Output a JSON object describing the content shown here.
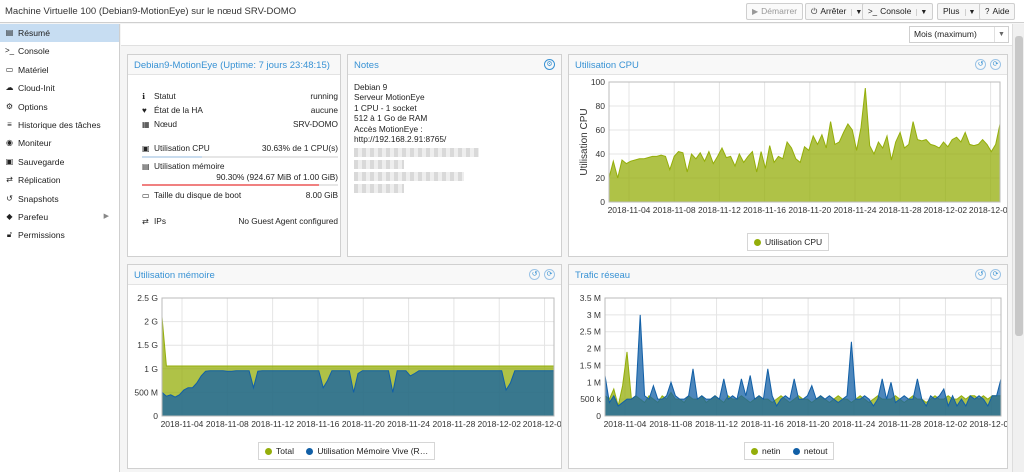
{
  "window": {
    "title": "Machine Virtuelle 100 (Debian9-MotionEye) sur le nœud SRV-DOMO"
  },
  "toolbar": {
    "start_label": "Démarrer",
    "stop_label": "Arrêter",
    "console_label": "Console",
    "more_label": "Plus",
    "help_label": "Aide"
  },
  "sidebar": {
    "items": [
      {
        "label": "Résumé",
        "icon": "book-icon"
      },
      {
        "label": "Console",
        "icon": "terminal-icon"
      },
      {
        "label": "Matériel",
        "icon": "monitor-icon"
      },
      {
        "label": "Cloud-Init",
        "icon": "cloud-icon"
      },
      {
        "label": "Options",
        "icon": "gear-icon"
      },
      {
        "label": "Historique des tâches",
        "icon": "list-icon"
      },
      {
        "label": "Moniteur",
        "icon": "eye-icon"
      },
      {
        "label": "Sauvegarde",
        "icon": "floppy-icon"
      },
      {
        "label": "Réplication",
        "icon": "retweet-icon"
      },
      {
        "label": "Snapshots",
        "icon": "history-icon"
      },
      {
        "label": "Parefeu",
        "icon": "shield-icon"
      },
      {
        "label": "Permissions",
        "icon": "unlock-icon"
      }
    ]
  },
  "timeframe": {
    "selected": "Mois (maximum)"
  },
  "status": {
    "title": "Debian9-MotionEye (Uptime: 7 jours 23:48:15)",
    "rows": {
      "statut": {
        "label": "Statut",
        "value": "running"
      },
      "ha": {
        "label": "État de la HA",
        "value": "aucune"
      },
      "node": {
        "label": "Nœud",
        "value": "SRV-DOMO"
      },
      "cpu": {
        "label": "Utilisation CPU",
        "value": "30.63% de 1 CPU(s)",
        "fraction": 0.3063
      },
      "mem": {
        "label": "Utilisation mémoire",
        "value": "90.30% (924.67 MiB of 1.00 GiB)",
        "fraction": 0.903
      },
      "disk": {
        "label": "Taille du disque de boot",
        "value": "8.00 GiB"
      },
      "ips": {
        "label": "IPs",
        "value": "No Guest Agent configured"
      }
    }
  },
  "notes": {
    "title": "Notes",
    "lines": [
      "Debian 9",
      "Serveur MotionEye",
      "1 CPU - 1 socket",
      "512 à 1 Go de RAM",
      "Accès MotionEye :",
      "http://192.168.2.91:8765/"
    ]
  },
  "colors": {
    "green": "#94ae0a",
    "blue": "#115fa6",
    "cpu_bar": "#c9dcee",
    "mem_bar": "#f08080"
  },
  "chart_data": [
    {
      "id": "cpu",
      "type": "area",
      "title": "Utilisation CPU",
      "ylabel": "Utilisation CPU",
      "ylim": [
        0,
        100
      ],
      "yticks": [
        "0",
        "20",
        "40",
        "60",
        "80",
        "100"
      ],
      "xticks": [
        "2018-11-04",
        "2018-11-08",
        "2018-11-12",
        "2018-11-16",
        "2018-11-20",
        "2018-11-24",
        "2018-11-28",
        "2018-12-02",
        "2018-12-06"
      ],
      "grid": true,
      "legend_position": "bottom",
      "series": [
        {
          "name": "Utilisation CPU",
          "values": [
            20,
            34,
            20,
            35,
            32,
            34,
            35,
            36,
            36,
            37,
            38,
            38,
            39,
            38,
            27,
            38,
            42,
            41,
            25,
            40,
            36,
            41,
            34,
            42,
            32,
            38,
            45,
            37,
            38,
            30,
            40,
            33,
            38,
            42,
            25,
            42,
            28,
            47,
            33,
            38,
            36,
            50,
            45,
            36,
            33,
            46,
            43,
            55,
            48,
            56,
            45,
            67,
            48,
            50,
            58,
            65,
            60,
            43,
            62,
            95,
            47,
            40,
            50,
            45,
            55,
            35,
            50,
            58,
            45,
            48,
            67,
            52,
            51,
            52,
            48,
            47,
            45,
            50,
            46,
            52,
            54,
            50,
            58,
            48,
            47,
            48,
            52,
            48,
            42,
            48,
            65
          ]
        }
      ]
    },
    {
      "id": "mem",
      "type": "area",
      "title": "Utilisation mémoire",
      "ylim": [
        0,
        2.5
      ],
      "yticks": [
        "0",
        "500 M",
        "1 G",
        "1.5 G",
        "2 G",
        "2.5 G"
      ],
      "xticks": [
        "2018-11-04",
        "2018-11-08",
        "2018-11-12",
        "2018-11-16",
        "2018-11-20",
        "2018-11-24",
        "2018-11-28",
        "2018-12-02",
        "2018-12-06"
      ],
      "grid": true,
      "legend_position": "bottom",
      "series": [
        {
          "name": "Total",
          "values": [
            2.1,
            1.06,
            1.06,
            1.06,
            1.06,
            1.06,
            1.06,
            1.06,
            1.06,
            1.06,
            1.06,
            1.06,
            1.06,
            1.06,
            1.06,
            1.06,
            1.06,
            1.06,
            1.06,
            1.06,
            1.06,
            1.06,
            1.06,
            1.06,
            1.06,
            1.06,
            1.06,
            1.06,
            1.06,
            1.06,
            1.06,
            1.06,
            1.06,
            1.06,
            1.06,
            1.06,
            1.06,
            1.06,
            1.06,
            1.06,
            1.06,
            1.06,
            1.06,
            1.06,
            1.06,
            1.06,
            1.06,
            1.06,
            1.06,
            1.06,
            1.06,
            1.06,
            1.06,
            1.06,
            1.06,
            1.06,
            1.06,
            1.06,
            1.06,
            1.06,
            1.06,
            1.06,
            1.06,
            1.06,
            1.06,
            1.06,
            1.06,
            1.06,
            1.06,
            1.06,
            1.06,
            1.06,
            1.06,
            1.06,
            1.06,
            1.06,
            1.06,
            1.06,
            1.06,
            1.06,
            1.06,
            1.06,
            1.06,
            1.06,
            1.06,
            1.06,
            1.06,
            1.06,
            1.06,
            1.06,
            1.06
          ]
        },
        {
          "name": "Utilisation Mémoire Vive (R…",
          "values": [
            0.5,
            0.42,
            0.45,
            0.4,
            0.45,
            0.55,
            0.6,
            0.6,
            0.7,
            0.85,
            0.95,
            0.96,
            0.96,
            0.96,
            0.96,
            0.95,
            0.95,
            0.96,
            0.96,
            0.96,
            0.96,
            0.6,
            0.95,
            0.96,
            0.96,
            0.96,
            0.96,
            0.96,
            0.96,
            0.96,
            0.96,
            0.96,
            0.96,
            0.96,
            0.96,
            0.96,
            0.96,
            0.6,
            0.75,
            0.96,
            0.96,
            0.96,
            0.96,
            0.96,
            0.5,
            0.9,
            0.96,
            0.96,
            0.96,
            0.96,
            0.96,
            0.96,
            0.96,
            0.5,
            0.96,
            0.96,
            0.96,
            0.85,
            0.9,
            0.96,
            0.96,
            0.96,
            0.96,
            0.96,
            0.96,
            0.96,
            0.96,
            0.96,
            0.96,
            0.96,
            0.96,
            0.96,
            0.96,
            0.96,
            0.96,
            0.96,
            0.96,
            0.96,
            0.96,
            0.55,
            0.7,
            0.96,
            0.96,
            0.96,
            0.96,
            0.96,
            0.96,
            0.96,
            0.96,
            0.96,
            0.96
          ]
        }
      ]
    },
    {
      "id": "net",
      "type": "area",
      "title": "Trafic réseau",
      "ylim": [
        0,
        3.5
      ],
      "yticks": [
        "0",
        "500 k",
        "1 M",
        "1.5 M",
        "2 M",
        "2.5 M",
        "3 M",
        "3.5 M"
      ],
      "xticks": [
        "2018-11-04",
        "2018-11-08",
        "2018-11-12",
        "2018-11-16",
        "2018-11-20",
        "2018-11-24",
        "2018-11-28",
        "2018-12-02",
        "2018-12-06"
      ],
      "grid": true,
      "legend_position": "bottom",
      "series": [
        {
          "name": "netin",
          "values": [
            0.6,
            0.5,
            0.8,
            0.3,
            0.9,
            1.9,
            0.5,
            0.6,
            0.5,
            0.4,
            0.6,
            0.5,
            0.4,
            0.6,
            0.5,
            0.7,
            0.5,
            0.5,
            0.4,
            0.6,
            0.5,
            0.5,
            0.6,
            0.4,
            0.5,
            0.6,
            0.5,
            0.4,
            0.6,
            0.5,
            0.5,
            0.6,
            0.5,
            0.4,
            0.5,
            0.6,
            0.5,
            0.5,
            0.4,
            0.5,
            0.6,
            0.5,
            0.4,
            0.5,
            0.6,
            0.5,
            0.5,
            0.4,
            0.5,
            0.6,
            0.5,
            0.4,
            0.5,
            0.6,
            0.5,
            0.5,
            0.4,
            0.5,
            0.6,
            0.5,
            0.4,
            0.5,
            0.6,
            0.5,
            0.5,
            0.5,
            0.6,
            0.5,
            0.4,
            0.5,
            0.6,
            0.5,
            0.5,
            0.4,
            0.5,
            0.6,
            0.5,
            0.5,
            0.6,
            0.5,
            0.5,
            0.6,
            0.5,
            0.6,
            0.6,
            0.5,
            0.6,
            0.5,
            0.6,
            0.6,
            0.6
          ]
        },
        {
          "name": "netout",
          "values": [
            1.2,
            0.4,
            0.6,
            0.3,
            0.4,
            0.5,
            0.5,
            0.6,
            3.0,
            0.6,
            0.5,
            0.9,
            0.5,
            0.5,
            0.6,
            1.0,
            0.6,
            0.5,
            0.5,
            0.6,
            1.4,
            0.5,
            0.6,
            0.5,
            0.5,
            0.6,
            0.5,
            1.1,
            0.5,
            0.6,
            0.5,
            1.1,
            0.6,
            1.2,
            0.5,
            0.6,
            0.5,
            1.4,
            0.6,
            0.3,
            0.5,
            0.6,
            0.5,
            1.1,
            0.5,
            0.5,
            0.6,
            0.9,
            0.5,
            0.6,
            0.5,
            0.6,
            0.5,
            0.4,
            0.5,
            0.6,
            2.2,
            0.5,
            0.5,
            0.6,
            0.5,
            0.3,
            0.5,
            1.1,
            0.5,
            1.0,
            0.4,
            0.5,
            0.6,
            0.5,
            0.5,
            1.1,
            0.5,
            0.3,
            0.6,
            0.5,
            0.6,
            0.8,
            0.3,
            0.6,
            0.3,
            0.5,
            0.3,
            0.6,
            0.5,
            0.6,
            0.5,
            0.3,
            0.6,
            0.6,
            1.1
          ]
        }
      ]
    }
  ]
}
